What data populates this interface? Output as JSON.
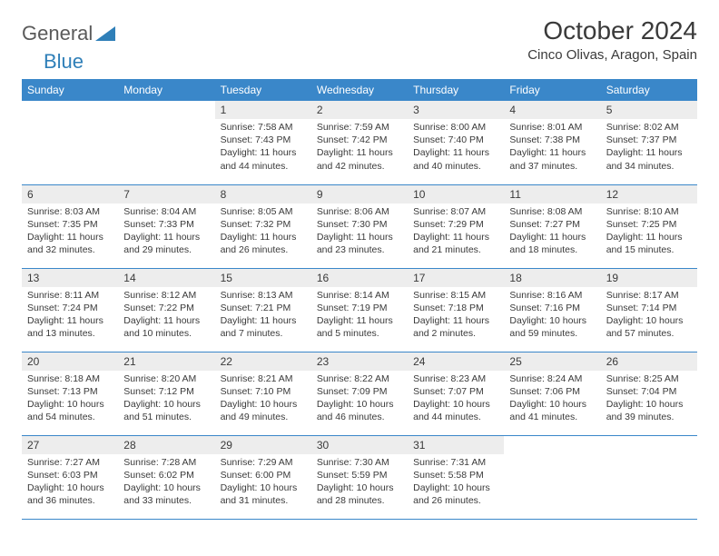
{
  "logo": {
    "word1": "General",
    "word2": "Blue"
  },
  "title": "October 2024",
  "location": "Cinco Olivas, Aragon, Spain",
  "colors": {
    "header_bg": "#3a87c9",
    "header_text": "#ffffff",
    "daynum_bg": "#ededed",
    "border": "#3a87c9",
    "logo_blue": "#2f7fb8"
  },
  "weekdays": [
    "Sunday",
    "Monday",
    "Tuesday",
    "Wednesday",
    "Thursday",
    "Friday",
    "Saturday"
  ],
  "weeks": [
    [
      null,
      null,
      {
        "n": "1",
        "sunrise": "Sunrise: 7:58 AM",
        "sunset": "Sunset: 7:43 PM",
        "day1": "Daylight: 11 hours",
        "day2": "and 44 minutes."
      },
      {
        "n": "2",
        "sunrise": "Sunrise: 7:59 AM",
        "sunset": "Sunset: 7:42 PM",
        "day1": "Daylight: 11 hours",
        "day2": "and 42 minutes."
      },
      {
        "n": "3",
        "sunrise": "Sunrise: 8:00 AM",
        "sunset": "Sunset: 7:40 PM",
        "day1": "Daylight: 11 hours",
        "day2": "and 40 minutes."
      },
      {
        "n": "4",
        "sunrise": "Sunrise: 8:01 AM",
        "sunset": "Sunset: 7:38 PM",
        "day1": "Daylight: 11 hours",
        "day2": "and 37 minutes."
      },
      {
        "n": "5",
        "sunrise": "Sunrise: 8:02 AM",
        "sunset": "Sunset: 7:37 PM",
        "day1": "Daylight: 11 hours",
        "day2": "and 34 minutes."
      }
    ],
    [
      {
        "n": "6",
        "sunrise": "Sunrise: 8:03 AM",
        "sunset": "Sunset: 7:35 PM",
        "day1": "Daylight: 11 hours",
        "day2": "and 32 minutes."
      },
      {
        "n": "7",
        "sunrise": "Sunrise: 8:04 AM",
        "sunset": "Sunset: 7:33 PM",
        "day1": "Daylight: 11 hours",
        "day2": "and 29 minutes."
      },
      {
        "n": "8",
        "sunrise": "Sunrise: 8:05 AM",
        "sunset": "Sunset: 7:32 PM",
        "day1": "Daylight: 11 hours",
        "day2": "and 26 minutes."
      },
      {
        "n": "9",
        "sunrise": "Sunrise: 8:06 AM",
        "sunset": "Sunset: 7:30 PM",
        "day1": "Daylight: 11 hours",
        "day2": "and 23 minutes."
      },
      {
        "n": "10",
        "sunrise": "Sunrise: 8:07 AM",
        "sunset": "Sunset: 7:29 PM",
        "day1": "Daylight: 11 hours",
        "day2": "and 21 minutes."
      },
      {
        "n": "11",
        "sunrise": "Sunrise: 8:08 AM",
        "sunset": "Sunset: 7:27 PM",
        "day1": "Daylight: 11 hours",
        "day2": "and 18 minutes."
      },
      {
        "n": "12",
        "sunrise": "Sunrise: 8:10 AM",
        "sunset": "Sunset: 7:25 PM",
        "day1": "Daylight: 11 hours",
        "day2": "and 15 minutes."
      }
    ],
    [
      {
        "n": "13",
        "sunrise": "Sunrise: 8:11 AM",
        "sunset": "Sunset: 7:24 PM",
        "day1": "Daylight: 11 hours",
        "day2": "and 13 minutes."
      },
      {
        "n": "14",
        "sunrise": "Sunrise: 8:12 AM",
        "sunset": "Sunset: 7:22 PM",
        "day1": "Daylight: 11 hours",
        "day2": "and 10 minutes."
      },
      {
        "n": "15",
        "sunrise": "Sunrise: 8:13 AM",
        "sunset": "Sunset: 7:21 PM",
        "day1": "Daylight: 11 hours",
        "day2": "and 7 minutes."
      },
      {
        "n": "16",
        "sunrise": "Sunrise: 8:14 AM",
        "sunset": "Sunset: 7:19 PM",
        "day1": "Daylight: 11 hours",
        "day2": "and 5 minutes."
      },
      {
        "n": "17",
        "sunrise": "Sunrise: 8:15 AM",
        "sunset": "Sunset: 7:18 PM",
        "day1": "Daylight: 11 hours",
        "day2": "and 2 minutes."
      },
      {
        "n": "18",
        "sunrise": "Sunrise: 8:16 AM",
        "sunset": "Sunset: 7:16 PM",
        "day1": "Daylight: 10 hours",
        "day2": "and 59 minutes."
      },
      {
        "n": "19",
        "sunrise": "Sunrise: 8:17 AM",
        "sunset": "Sunset: 7:14 PM",
        "day1": "Daylight: 10 hours",
        "day2": "and 57 minutes."
      }
    ],
    [
      {
        "n": "20",
        "sunrise": "Sunrise: 8:18 AM",
        "sunset": "Sunset: 7:13 PM",
        "day1": "Daylight: 10 hours",
        "day2": "and 54 minutes."
      },
      {
        "n": "21",
        "sunrise": "Sunrise: 8:20 AM",
        "sunset": "Sunset: 7:12 PM",
        "day1": "Daylight: 10 hours",
        "day2": "and 51 minutes."
      },
      {
        "n": "22",
        "sunrise": "Sunrise: 8:21 AM",
        "sunset": "Sunset: 7:10 PM",
        "day1": "Daylight: 10 hours",
        "day2": "and 49 minutes."
      },
      {
        "n": "23",
        "sunrise": "Sunrise: 8:22 AM",
        "sunset": "Sunset: 7:09 PM",
        "day1": "Daylight: 10 hours",
        "day2": "and 46 minutes."
      },
      {
        "n": "24",
        "sunrise": "Sunrise: 8:23 AM",
        "sunset": "Sunset: 7:07 PM",
        "day1": "Daylight: 10 hours",
        "day2": "and 44 minutes."
      },
      {
        "n": "25",
        "sunrise": "Sunrise: 8:24 AM",
        "sunset": "Sunset: 7:06 PM",
        "day1": "Daylight: 10 hours",
        "day2": "and 41 minutes."
      },
      {
        "n": "26",
        "sunrise": "Sunrise: 8:25 AM",
        "sunset": "Sunset: 7:04 PM",
        "day1": "Daylight: 10 hours",
        "day2": "and 39 minutes."
      }
    ],
    [
      {
        "n": "27",
        "sunrise": "Sunrise: 7:27 AM",
        "sunset": "Sunset: 6:03 PM",
        "day1": "Daylight: 10 hours",
        "day2": "and 36 minutes."
      },
      {
        "n": "28",
        "sunrise": "Sunrise: 7:28 AM",
        "sunset": "Sunset: 6:02 PM",
        "day1": "Daylight: 10 hours",
        "day2": "and 33 minutes."
      },
      {
        "n": "29",
        "sunrise": "Sunrise: 7:29 AM",
        "sunset": "Sunset: 6:00 PM",
        "day1": "Daylight: 10 hours",
        "day2": "and 31 minutes."
      },
      {
        "n": "30",
        "sunrise": "Sunrise: 7:30 AM",
        "sunset": "Sunset: 5:59 PM",
        "day1": "Daylight: 10 hours",
        "day2": "and 28 minutes."
      },
      {
        "n": "31",
        "sunrise": "Sunrise: 7:31 AM",
        "sunset": "Sunset: 5:58 PM",
        "day1": "Daylight: 10 hours",
        "day2": "and 26 minutes."
      },
      null,
      null
    ]
  ]
}
